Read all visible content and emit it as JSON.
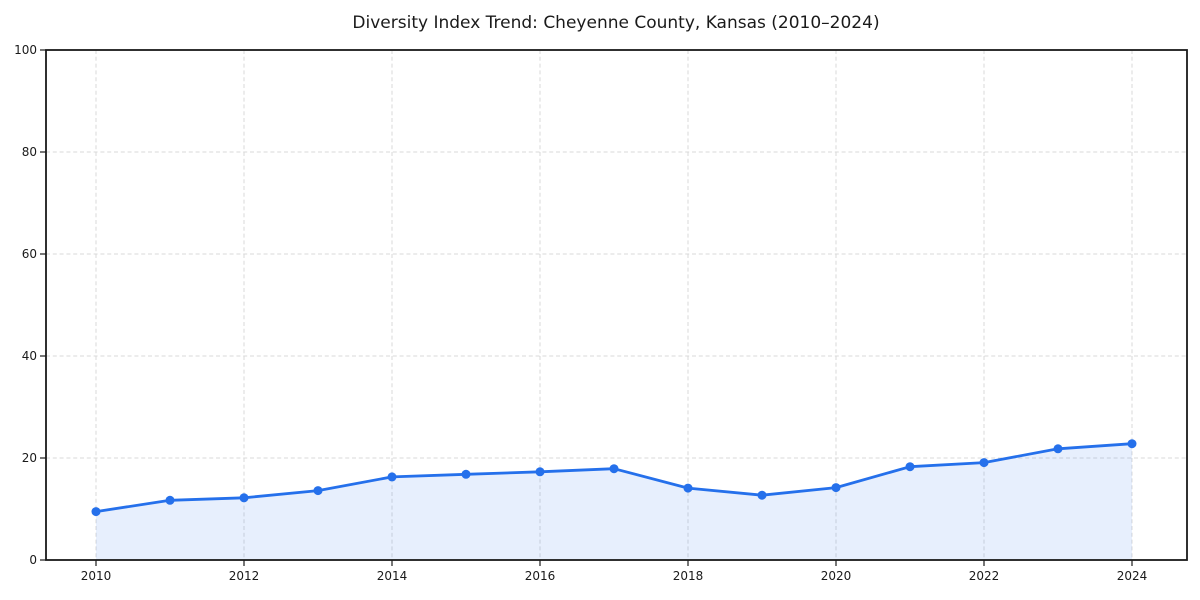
{
  "chart_data": {
    "type": "line",
    "title": "Diversity Index Trend: Cheyenne County, Kansas (2010–2024)",
    "series_name": "Diversity Index",
    "x": [
      2010,
      2011,
      2012,
      2013,
      2014,
      2015,
      2016,
      2017,
      2018,
      2019,
      2020,
      2021,
      2022,
      2023,
      2024
    ],
    "values": [
      9.5,
      11.7,
      12.2,
      13.6,
      16.3,
      16.8,
      17.3,
      17.9,
      14.1,
      12.7,
      14.2,
      18.3,
      19.1,
      21.8,
      22.8
    ],
    "xlabel": "",
    "ylabel": "",
    "ylim": [
      0,
      100
    ],
    "yticks": [
      0,
      20,
      40,
      60,
      80,
      100
    ],
    "xticks": [
      2010,
      2012,
      2014,
      2016,
      2018,
      2020,
      2022,
      2024
    ],
    "grid": true,
    "grid_style": "dashed",
    "legend": "none",
    "area_fill": true,
    "marker": "circle",
    "colors": {
      "line": "#2570eb",
      "marker": "#2570eb",
      "fill": "#2570eb",
      "fill_opacity": 0.11,
      "grid": "#d9d9d9",
      "axis": "#1a1a1a",
      "text": "#1a1a1a",
      "background": "#ffffff"
    }
  }
}
